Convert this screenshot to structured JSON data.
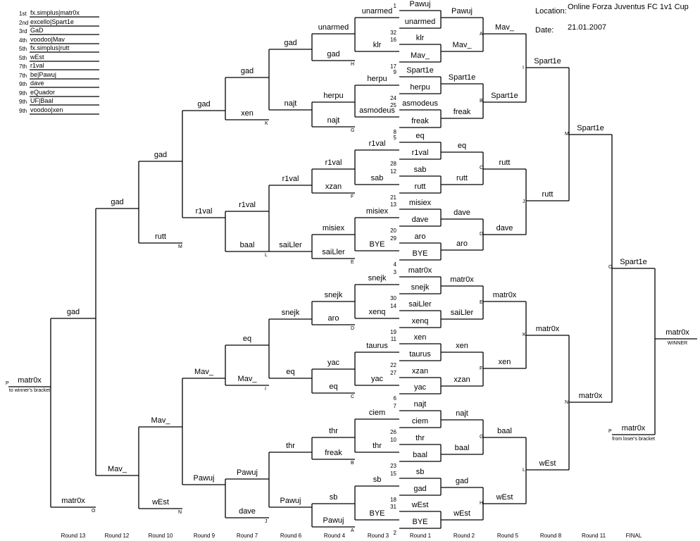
{
  "info": {
    "location_label": "Location:",
    "location_value": "Online Forza Juventus FC 1v1 Cup",
    "date_label": "Date:",
    "date_value": "21.01.2007"
  },
  "results": [
    {
      "rank": "1st",
      "player": "fx.simplus|matr0x"
    },
    {
      "rank": "2nd",
      "player": "excello|Spart1e"
    },
    {
      "rank": "3rd",
      "player": "GaD"
    },
    {
      "rank": "4th",
      "player": "voodoo|Mav"
    },
    {
      "rank": "5th",
      "player": "fx.simplus|rutt"
    },
    {
      "rank": "5th",
      "player": "wEst"
    },
    {
      "rank": "7th",
      "player": "r1val"
    },
    {
      "rank": "7th",
      "player": "be|Pawuj"
    },
    {
      "rank": "9th",
      "player": "dave"
    },
    {
      "rank": "9th",
      "player": "eQuador"
    },
    {
      "rank": "9th",
      "player": "UF|Baal"
    },
    {
      "rank": "9th",
      "player": "voodoo|xen"
    }
  ],
  "rounds": [
    "Round 13",
    "Round 12",
    "Round 10",
    "Round 9",
    "Round 7",
    "Round 6",
    "Round 4",
    "Round 3",
    "Round 1",
    "Round 2",
    "Round 5",
    "Round 8",
    "Round 11",
    "FINAL"
  ],
  "seeds": [
    "1",
    "32",
    "16",
    "17",
    "9",
    "24",
    "25",
    "8",
    "5",
    "28",
    "12",
    "21",
    "13",
    "20",
    "29",
    "4",
    "3",
    "30",
    "14",
    "19",
    "11",
    "22",
    "27",
    "6",
    "7",
    "26",
    "10",
    "23",
    "15",
    "18",
    "31",
    "2"
  ],
  "round1_players": [
    "Pawuj",
    "unarmed",
    "klr",
    "Mav_",
    "Spart1e",
    "herpu",
    "asmodeus",
    "freak",
    "eq",
    "r1val",
    "sab",
    "rutt",
    "misiex",
    "dave",
    "aro",
    "BYE",
    "matr0x",
    "snejk",
    "saiLler",
    "xenq",
    "xen",
    "taurus",
    "xzan",
    "yac",
    "najt",
    "ciem",
    "thr",
    "baal",
    "sb",
    "gad",
    "wEst",
    "BYE"
  ],
  "round2_winners": [
    "Pawuj",
    "Mav_",
    "Spart1e",
    "freak",
    "eq",
    "rutt",
    "dave",
    "aro",
    "matr0x",
    "saiLler",
    "xen",
    "xzan",
    "najt",
    "baal",
    "gad",
    "wEst"
  ],
  "round2_letters": [
    "A",
    "B",
    "C",
    "D",
    "E",
    "F",
    "G",
    "H"
  ],
  "round5_players": [
    "Mav_",
    "Spart1e",
    "rutt",
    "dave",
    "matr0x",
    "xen",
    "baal",
    "wEst"
  ],
  "round5_letters": [
    "I",
    "J",
    "K",
    "L"
  ],
  "round8_players": [
    "Spart1e",
    "rutt",
    "matr0x",
    "wEst"
  ],
  "round8_letters": [
    "M",
    "N"
  ],
  "round11_players": [
    "Spart1e",
    "matr0x"
  ],
  "round11_letter": "O",
  "final": {
    "from_losers": "matr0x",
    "from_losers_note": "from loser's bracket",
    "letter": "P",
    "winner": "matr0x",
    "winner_note": "WINNER"
  },
  "round3_players": [
    "unarmed",
    "klr",
    "herpu",
    "asmodeus",
    "r1val",
    "sab",
    "misiex",
    "BYE",
    "snejk",
    "xenq",
    "taurus",
    "yac",
    "ciem",
    "thr",
    "sb",
    "BYE"
  ],
  "round4_players": [
    "unarmed",
    "gad",
    "herpu",
    "najt",
    "r1val",
    "xzan",
    "misiex",
    "saiLler",
    "snejk",
    "aro",
    "yac",
    "eq",
    "thr",
    "freak",
    "sb",
    "Pawuj"
  ],
  "round4_letters": [
    "H",
    "G",
    "F",
    "E",
    "D",
    "C",
    "B",
    "A"
  ],
  "round6_players": [
    "gad",
    "najt",
    "r1val",
    "saiLler",
    "snejk",
    "eq",
    "thr",
    "Pawuj"
  ],
  "round7_players": [
    "gad",
    "xen",
    "r1val",
    "baal",
    "eq",
    "Mav_",
    "Pawuj",
    "dave"
  ],
  "round7_letters": [
    "K",
    "L",
    "I",
    "J"
  ],
  "round9_players": [
    "gad",
    "r1val",
    "Mav_",
    "Pawuj"
  ],
  "round10_players": [
    "gad",
    "rutt",
    "Mav_",
    "wEst"
  ],
  "round10_letters": [
    "M",
    "N"
  ],
  "round12_players": [
    "gad",
    "Mav_"
  ],
  "round13_players": [
    "gad",
    "matr0x"
  ],
  "round13_letter": "O",
  "losers_final": {
    "winner": "matr0x",
    "note": "to winner's bracket",
    "letter": "P"
  }
}
